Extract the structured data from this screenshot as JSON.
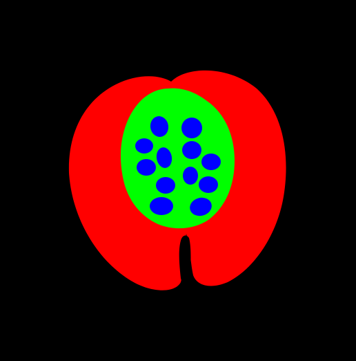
{
  "image": {
    "description": "segmentation-mask",
    "colors": {
      "background": "#000000",
      "flesh": "#ff0000",
      "core": "#00ff00",
      "seed": "#0000ff"
    },
    "seed_count": 12
  }
}
